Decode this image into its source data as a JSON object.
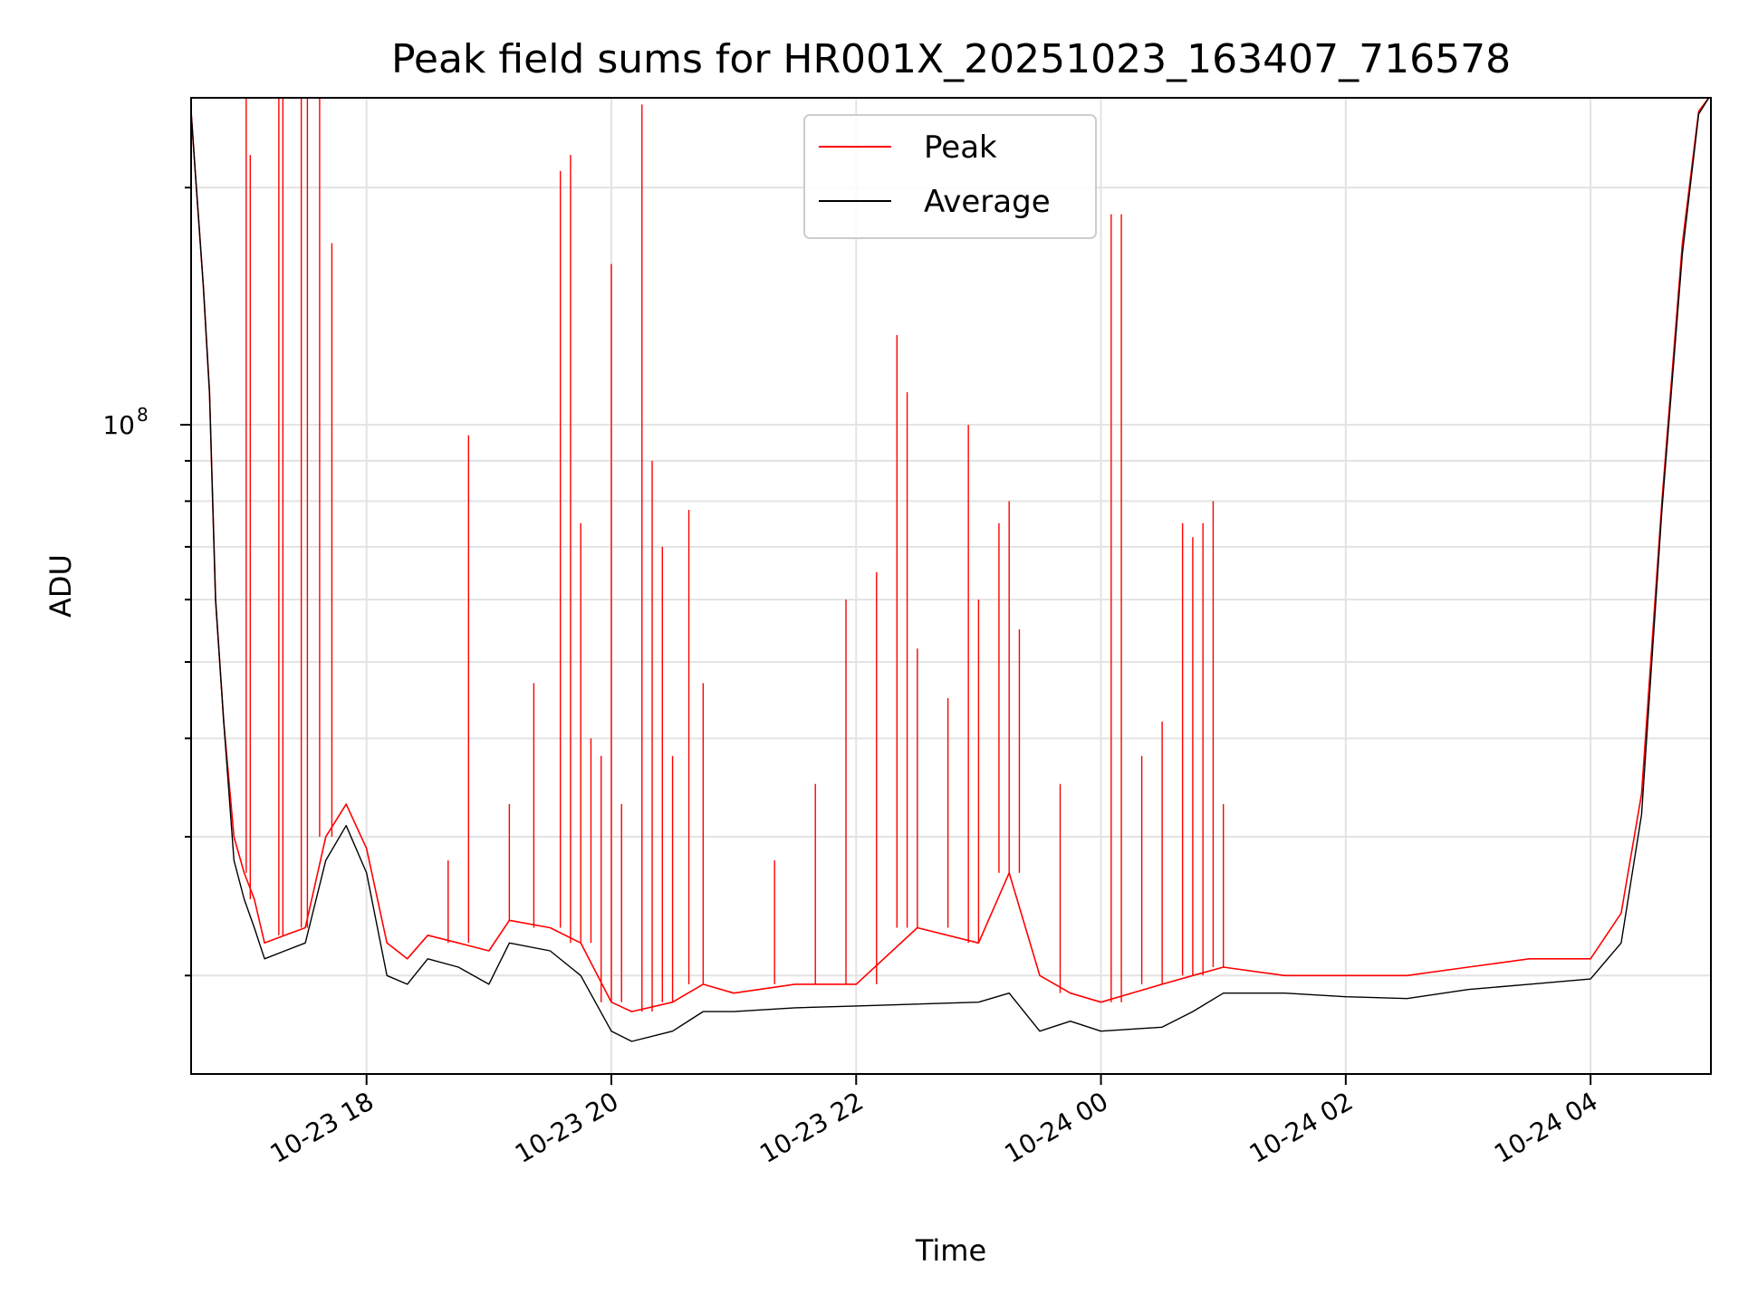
{
  "chart_data": {
    "type": "line",
    "title": "Peak field sums for HR001X_20251023_163407_716578",
    "xlabel": "Time",
    "ylabel": "ADU",
    "y_scale": "log",
    "x_range": [
      "10-23 16:34",
      "10-24 04:59"
    ],
    "ylim": [
      15000000,
      260000000
    ],
    "x_ticks": [
      "10-23 18",
      "10-23 20",
      "10-23 22",
      "10-24 00",
      "10-24 02",
      "10-24 04"
    ],
    "y_ticks": [
      {
        "label": "10",
        "exponent": "8",
        "value": 100000000
      }
    ],
    "grid": true,
    "legend_position": "top-center",
    "series": [
      {
        "name": "Peak",
        "color": "#ff0000",
        "points": [
          [
            "10-23 16:34",
            250000000
          ],
          [
            "10-23 16:36",
            210000000
          ],
          [
            "10-23 16:40",
            150000000
          ],
          [
            "10-23 16:43",
            110000000
          ],
          [
            "10-23 16:46",
            60000000
          ],
          [
            "10-23 16:50",
            42000000
          ],
          [
            "10-23 16:55",
            30000000
          ],
          [
            "10-23 17:00",
            27000000
          ],
          [
            "10-23 17:05",
            25000000
          ],
          [
            "10-23 17:10",
            22000000
          ],
          [
            "10-23 17:20",
            22500000
          ],
          [
            "10-23 17:30",
            23000000
          ],
          [
            "10-23 17:40",
            30000000
          ],
          [
            "10-23 17:50",
            33000000
          ],
          [
            "10-23 18:00",
            29000000
          ],
          [
            "10-23 18:10",
            22000000
          ],
          [
            "10-23 18:20",
            21000000
          ],
          [
            "10-23 18:30",
            22500000
          ],
          [
            "10-23 18:45",
            22000000
          ],
          [
            "10-23 19:00",
            21500000
          ],
          [
            "10-23 19:10",
            23500000
          ],
          [
            "10-23 19:30",
            23000000
          ],
          [
            "10-23 19:45",
            22000000
          ],
          [
            "10-23 20:00",
            18500000
          ],
          [
            "10-23 20:10",
            18000000
          ],
          [
            "10-23 20:30",
            18500000
          ],
          [
            "10-23 20:45",
            19500000
          ],
          [
            "10-23 21:00",
            19000000
          ],
          [
            "10-23 21:30",
            19500000
          ],
          [
            "10-23 22:00",
            19500000
          ],
          [
            "10-23 22:30",
            23000000
          ],
          [
            "10-23 23:00",
            22000000
          ],
          [
            "10-23 23:15",
            27000000
          ],
          [
            "10-23 23:30",
            20000000
          ],
          [
            "10-23 23:45",
            19000000
          ],
          [
            "10-24 00:00",
            18500000
          ],
          [
            "10-24 00:30",
            19500000
          ],
          [
            "10-24 00:45",
            20000000
          ],
          [
            "10-24 01:00",
            20500000
          ],
          [
            "10-24 01:30",
            20000000
          ],
          [
            "10-24 02:00",
            20000000
          ],
          [
            "10-24 02:30",
            20000000
          ],
          [
            "10-24 03:00",
            20500000
          ],
          [
            "10-24 03:30",
            21000000
          ],
          [
            "10-24 04:00",
            21000000
          ],
          [
            "10-24 04:15",
            24000000
          ],
          [
            "10-24 04:25",
            34000000
          ],
          [
            "10-24 04:35",
            80000000
          ],
          [
            "10-24 04:45",
            170000000
          ],
          [
            "10-24 04:53",
            250000000
          ],
          [
            "10-24 04:58",
            260000000
          ]
        ],
        "spikes": [
          [
            "10-23 17:01",
            260000000
          ],
          [
            "10-23 17:03",
            220000000
          ],
          [
            "10-23 17:17",
            260000000
          ],
          [
            "10-23 17:19",
            260000000
          ],
          [
            "10-23 17:28",
            260000000
          ],
          [
            "10-23 17:31",
            260000000
          ],
          [
            "10-23 17:37",
            260000000
          ],
          [
            "10-23 17:43",
            170000000
          ],
          [
            "10-23 18:40",
            28000000
          ],
          [
            "10-23 18:50",
            97000000
          ],
          [
            "10-23 19:10",
            33000000
          ],
          [
            "10-23 19:22",
            47000000
          ],
          [
            "10-23 19:35",
            210000000
          ],
          [
            "10-23 19:40",
            220000000
          ],
          [
            "10-23 19:45",
            75000000
          ],
          [
            "10-23 19:50",
            40000000
          ],
          [
            "10-23 19:55",
            38000000
          ],
          [
            "10-23 20:00",
            160000000
          ],
          [
            "10-23 20:05",
            33000000
          ],
          [
            "10-23 20:15",
            255000000
          ],
          [
            "10-23 20:20",
            90000000
          ],
          [
            "10-23 20:25",
            70000000
          ],
          [
            "10-23 20:30",
            38000000
          ],
          [
            "10-23 20:38",
            78000000
          ],
          [
            "10-23 20:45",
            47000000
          ],
          [
            "10-23 21:20",
            28000000
          ],
          [
            "10-23 21:40",
            35000000
          ],
          [
            "10-23 21:55",
            60000000
          ],
          [
            "10-23 22:10",
            65000000
          ],
          [
            "10-23 22:20",
            130000000
          ],
          [
            "10-23 22:25",
            110000000
          ],
          [
            "10-23 22:30",
            52000000
          ],
          [
            "10-23 22:45",
            45000000
          ],
          [
            "10-23 22:55",
            100000000
          ],
          [
            "10-23 23:00",
            60000000
          ],
          [
            "10-23 23:10",
            75000000
          ],
          [
            "10-23 23:15",
            80000000
          ],
          [
            "10-23 23:20",
            55000000
          ],
          [
            "10-23 23:40",
            35000000
          ],
          [
            "10-24 00:05",
            185000000
          ],
          [
            "10-24 00:10",
            185000000
          ],
          [
            "10-24 00:20",
            38000000
          ],
          [
            "10-24 00:30",
            42000000
          ],
          [
            "10-24 00:40",
            75000000
          ],
          [
            "10-24 00:45",
            72000000
          ],
          [
            "10-24 00:50",
            75000000
          ],
          [
            "10-24 00:55",
            80000000
          ],
          [
            "10-24 01:00",
            33000000
          ]
        ]
      },
      {
        "name": "Average",
        "color": "#000000",
        "points": [
          [
            "10-23 16:34",
            250000000
          ],
          [
            "10-23 16:36",
            210000000
          ],
          [
            "10-23 16:40",
            150000000
          ],
          [
            "10-23 16:43",
            110000000
          ],
          [
            "10-23 16:46",
            60000000
          ],
          [
            "10-23 16:50",
            42000000
          ],
          [
            "10-23 16:55",
            28000000
          ],
          [
            "10-23 17:00",
            25000000
          ],
          [
            "10-23 17:05",
            23000000
          ],
          [
            "10-23 17:10",
            21000000
          ],
          [
            "10-23 17:20",
            21500000
          ],
          [
            "10-23 17:30",
            22000000
          ],
          [
            "10-23 17:40",
            28000000
          ],
          [
            "10-23 17:50",
            31000000
          ],
          [
            "10-23 18:00",
            27000000
          ],
          [
            "10-23 18:10",
            20000000
          ],
          [
            "10-23 18:20",
            19500000
          ],
          [
            "10-23 18:30",
            21000000
          ],
          [
            "10-23 18:45",
            20500000
          ],
          [
            "10-23 19:00",
            19500000
          ],
          [
            "10-23 19:10",
            22000000
          ],
          [
            "10-23 19:30",
            21500000
          ],
          [
            "10-23 19:45",
            20000000
          ],
          [
            "10-23 20:00",
            17000000
          ],
          [
            "10-23 20:10",
            16500000
          ],
          [
            "10-23 20:30",
            17000000
          ],
          [
            "10-23 20:45",
            18000000
          ],
          [
            "10-23 21:00",
            18000000
          ],
          [
            "10-23 21:30",
            18200000
          ],
          [
            "10-23 22:00",
            18300000
          ],
          [
            "10-23 22:30",
            18400000
          ],
          [
            "10-23 23:00",
            18500000
          ],
          [
            "10-23 23:15",
            19000000
          ],
          [
            "10-23 23:30",
            17000000
          ],
          [
            "10-23 23:45",
            17500000
          ],
          [
            "10-24 00:00",
            17000000
          ],
          [
            "10-24 00:30",
            17200000
          ],
          [
            "10-24 00:45",
            18000000
          ],
          [
            "10-24 01:00",
            19000000
          ],
          [
            "10-24 01:30",
            19000000
          ],
          [
            "10-24 02:00",
            18800000
          ],
          [
            "10-24 02:30",
            18700000
          ],
          [
            "10-24 03:00",
            19200000
          ],
          [
            "10-24 03:30",
            19500000
          ],
          [
            "10-24 04:00",
            19800000
          ],
          [
            "10-24 04:15",
            22000000
          ],
          [
            "10-24 04:25",
            32000000
          ],
          [
            "10-24 04:35",
            78000000
          ],
          [
            "10-24 04:45",
            165000000
          ],
          [
            "10-24 04:53",
            248000000
          ],
          [
            "10-24 04:58",
            260000000
          ]
        ]
      }
    ]
  }
}
